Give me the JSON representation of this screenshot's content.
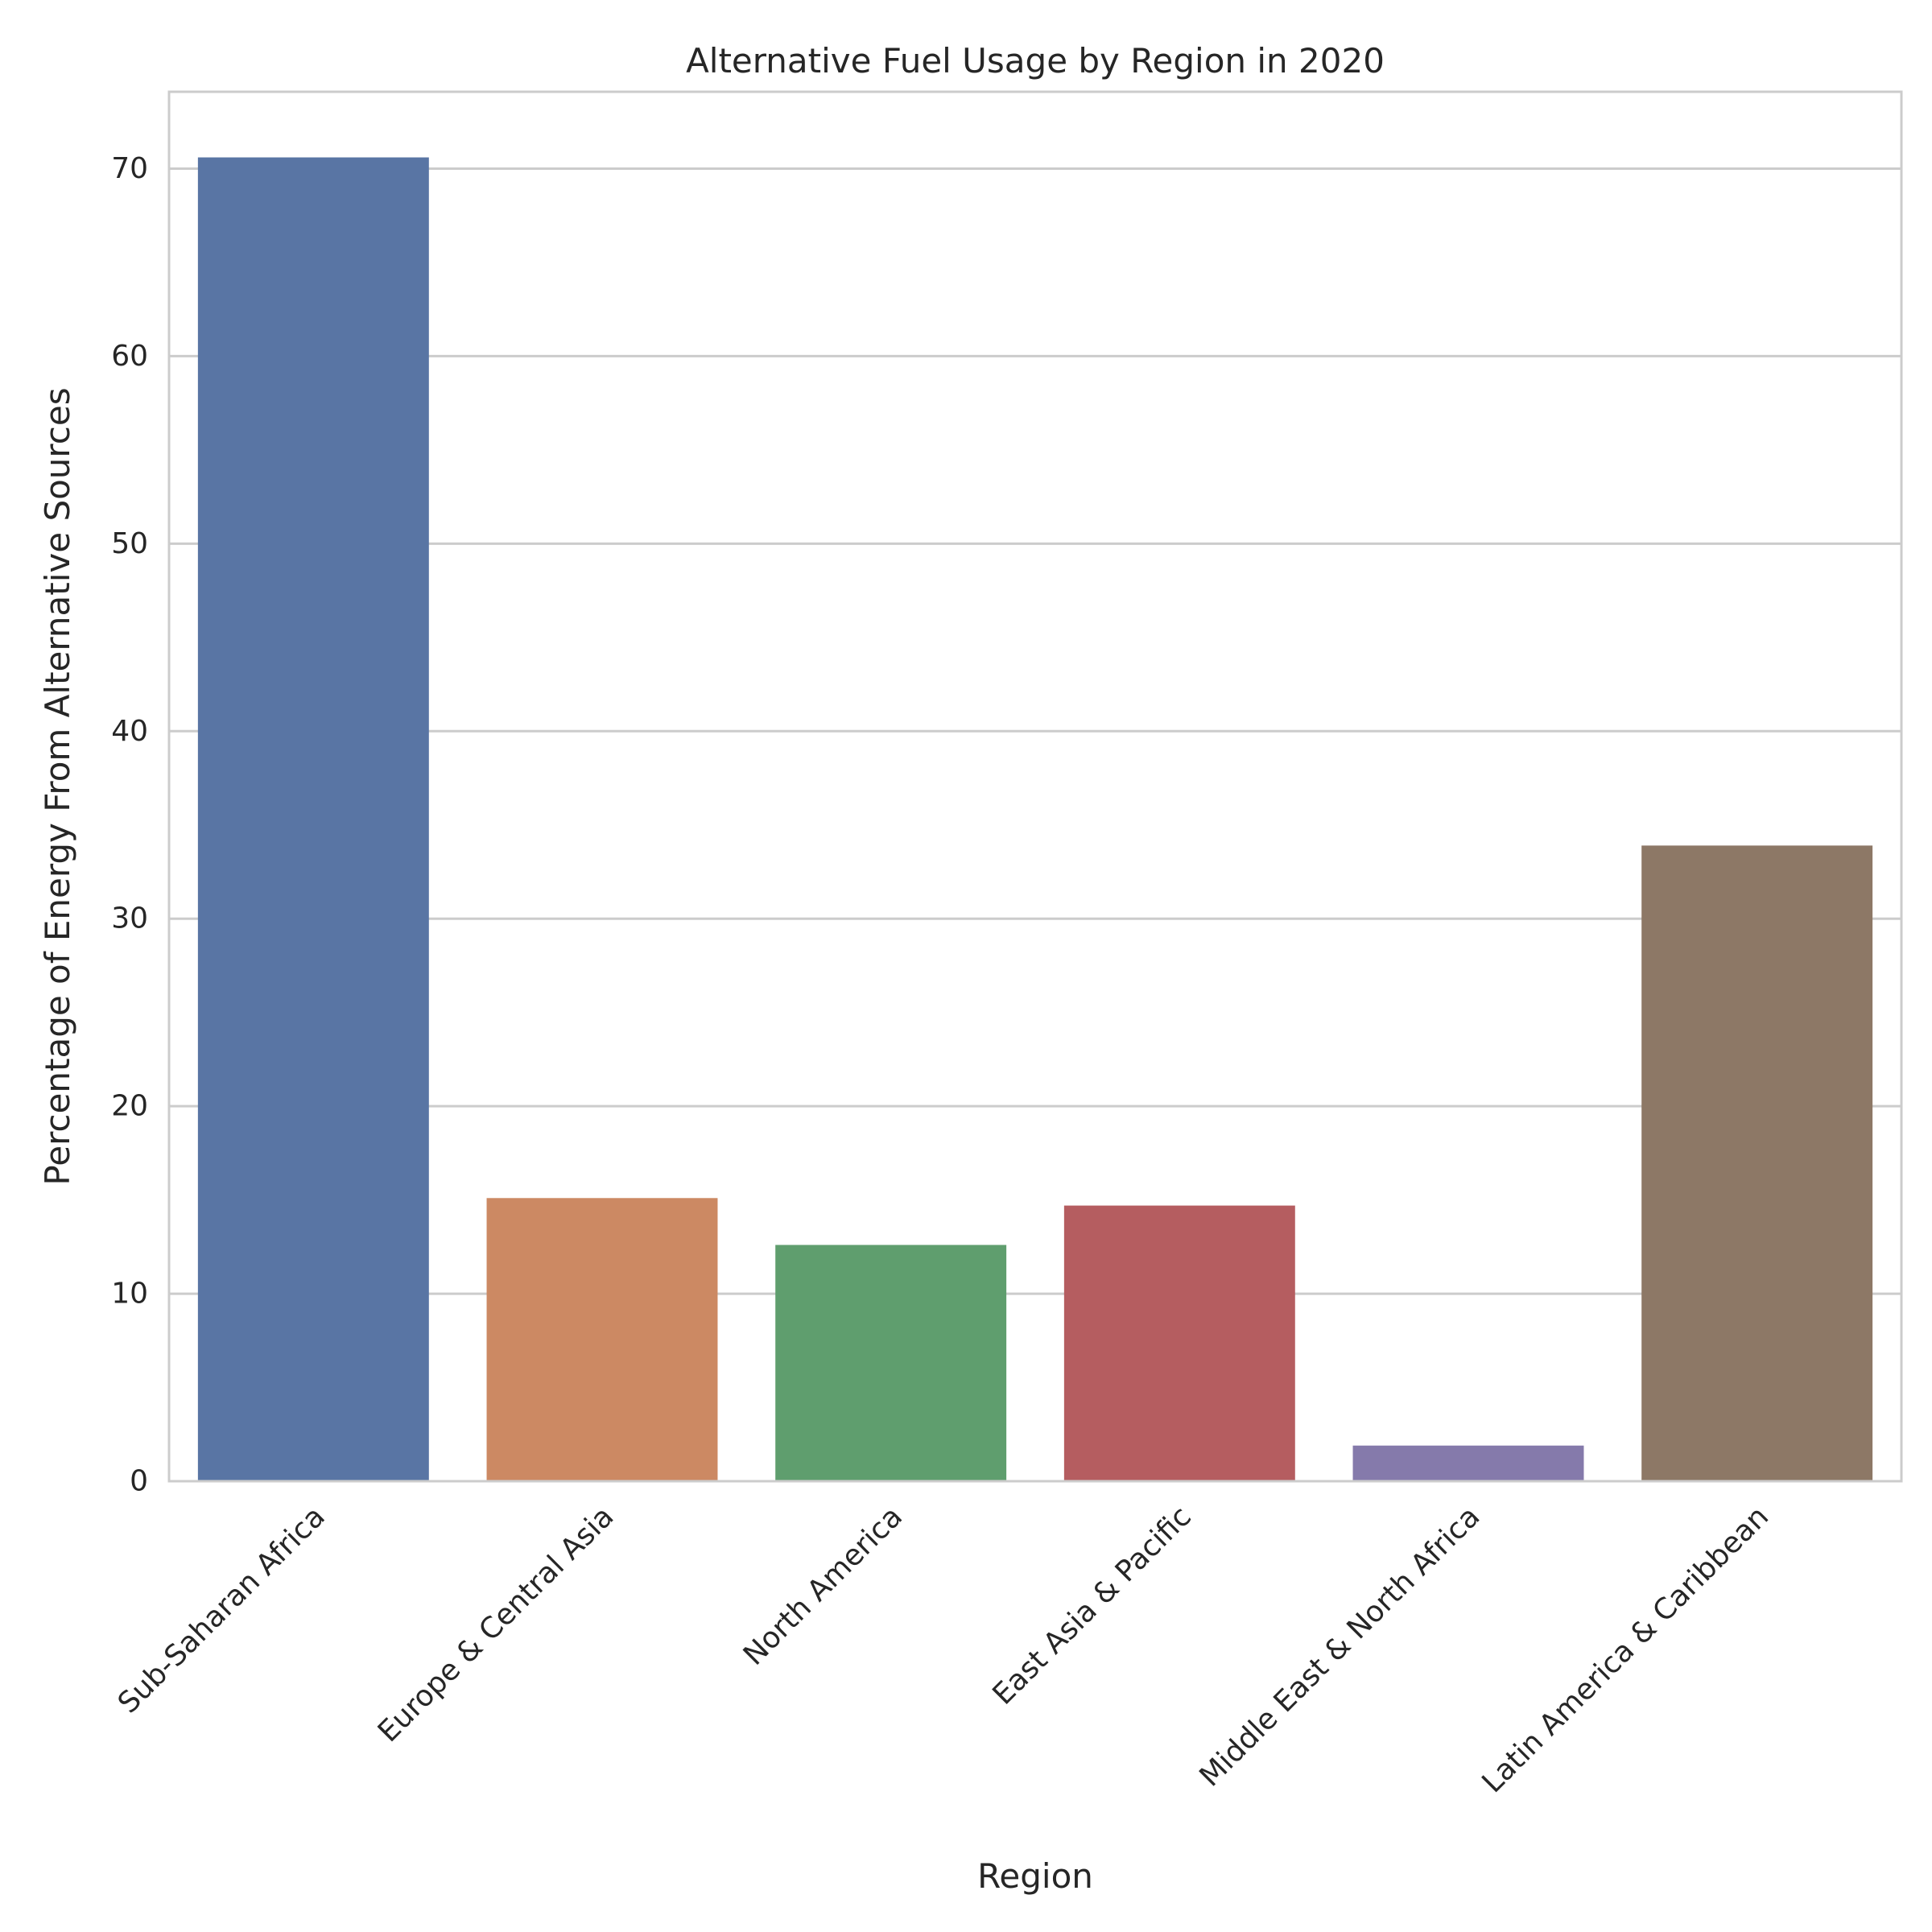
{
  "chart_data": {
    "type": "bar",
    "title": "Alternative Fuel Usage by Region in 2020",
    "xlabel": "Region",
    "ylabel": "Percentage of Energy From Alternative Sources",
    "categories": [
      "Sub-Saharan Africa",
      "Europe & Central Asia",
      "North America",
      "East Asia & Pacific",
      "Middle East & North Africa",
      "Latin America & Caribbean"
    ],
    "values": [
      70.6,
      15.1,
      12.6,
      14.7,
      1.9,
      33.9
    ],
    "colors": [
      "#5975a4",
      "#cc8963",
      "#5f9e6e",
      "#b55d60",
      "#857aab",
      "#8d7866"
    ],
    "ylim": [
      0,
      74.1
    ],
    "yticks": [
      0,
      10,
      20,
      30,
      40,
      50,
      60,
      70
    ],
    "grid": "horizontal"
  }
}
